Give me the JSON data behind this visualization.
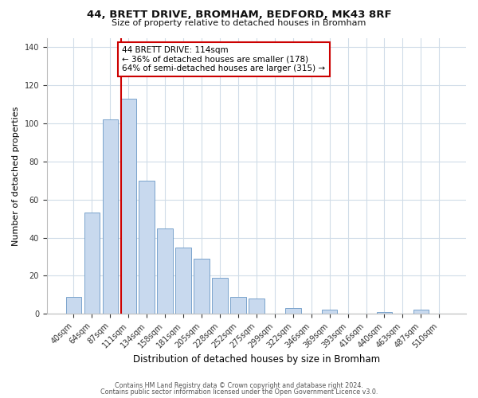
{
  "title": "44, BRETT DRIVE, BROMHAM, BEDFORD, MK43 8RF",
  "subtitle": "Size of property relative to detached houses in Bromham",
  "xlabel": "Distribution of detached houses by size in Bromham",
  "ylabel": "Number of detached properties",
  "bar_labels": [
    "40sqm",
    "64sqm",
    "87sqm",
    "111sqm",
    "134sqm",
    "158sqm",
    "181sqm",
    "205sqm",
    "228sqm",
    "252sqm",
    "275sqm",
    "299sqm",
    "322sqm",
    "346sqm",
    "369sqm",
    "393sqm",
    "416sqm",
    "440sqm",
    "463sqm",
    "487sqm",
    "510sqm"
  ],
  "bar_values": [
    9,
    53,
    102,
    113,
    70,
    45,
    35,
    29,
    19,
    9,
    8,
    0,
    3,
    0,
    2,
    0,
    0,
    1,
    0,
    2,
    0
  ],
  "bar_color": "#c8d9ee",
  "bar_edge_color": "#7aa3cc",
  "vline_x_index": 3,
  "vline_color": "#cc0000",
  "ylim": [
    0,
    145
  ],
  "yticks": [
    0,
    20,
    40,
    60,
    80,
    100,
    120,
    140
  ],
  "annotation_title": "44 BRETT DRIVE: 114sqm",
  "annotation_line1": "← 36% of detached houses are smaller (178)",
  "annotation_line2": "64% of semi-detached houses are larger (315) →",
  "annotation_box_color": "#ffffff",
  "annotation_box_edge": "#cc0000",
  "footer1": "Contains HM Land Registry data © Crown copyright and database right 2024.",
  "footer2": "Contains public sector information licensed under the Open Government Licence v3.0.",
  "background_color": "#ffffff",
  "grid_color": "#d0dce8"
}
